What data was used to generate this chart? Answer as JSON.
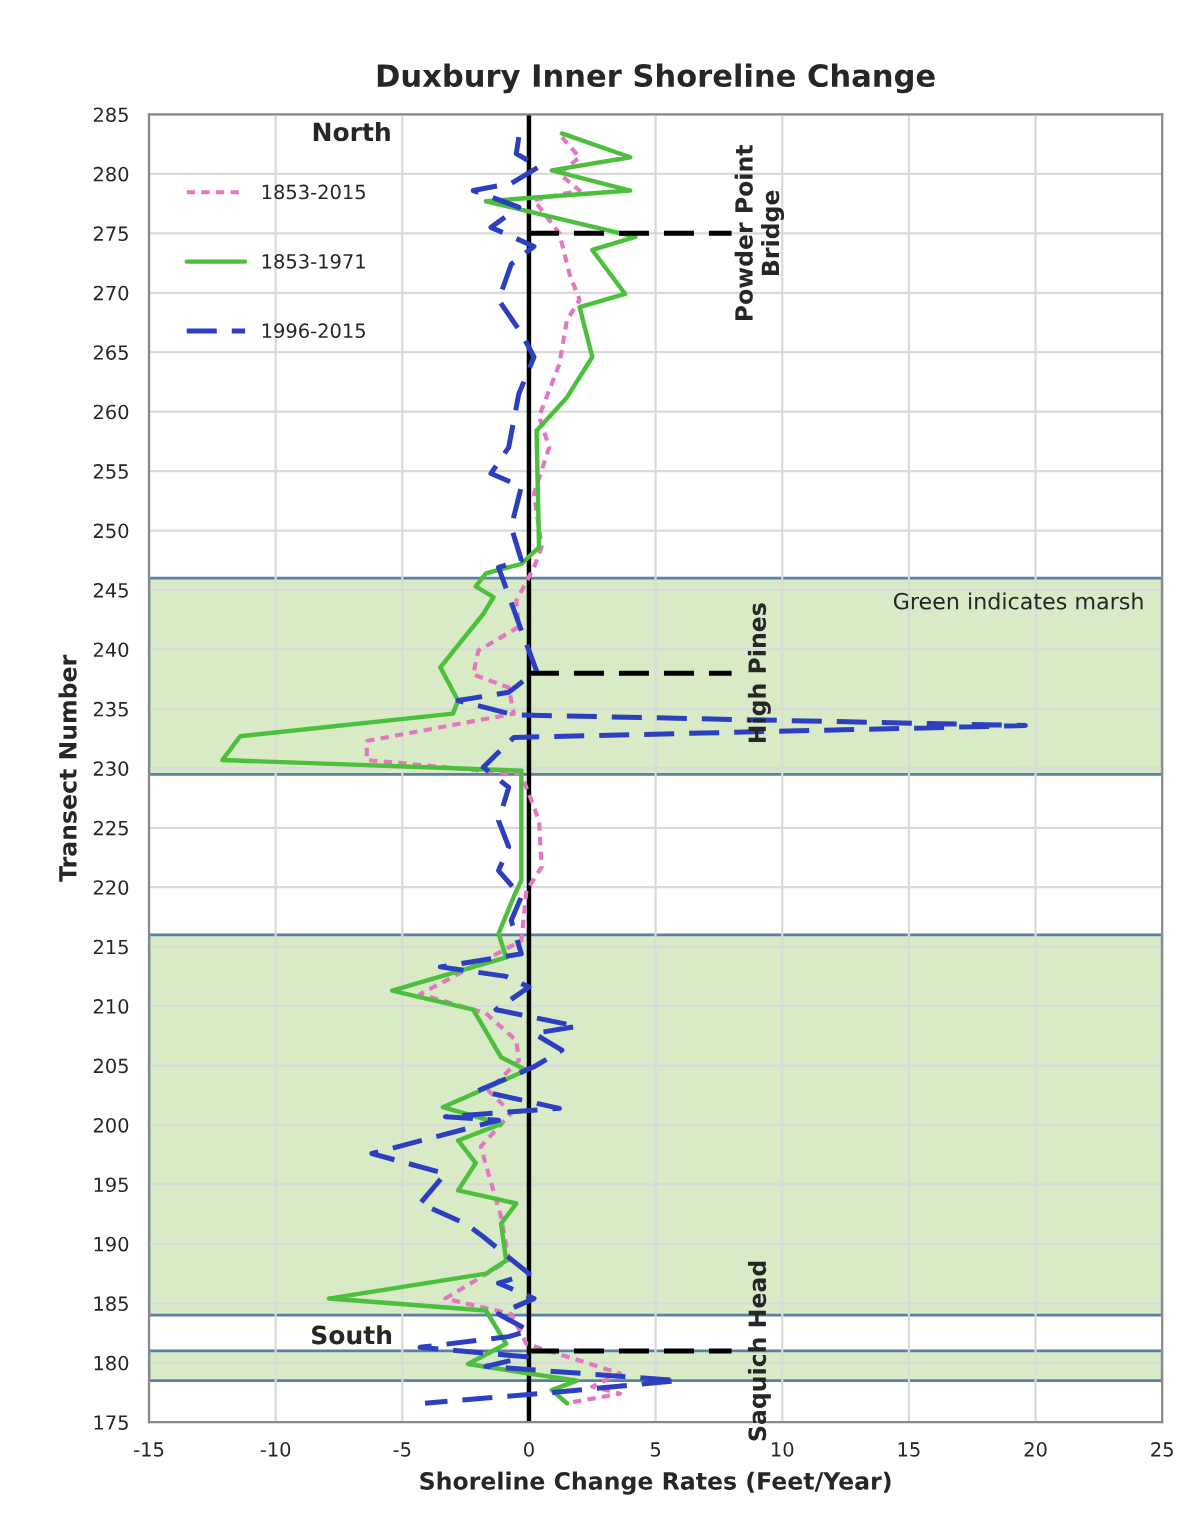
{
  "chart_data": {
    "type": "line",
    "title": "Duxbury Inner Shoreline Change",
    "xlabel": "Shoreline Change Rates (Feet/Year)",
    "ylabel": "Transect Number",
    "xlim": [
      -15,
      25
    ],
    "xticks": [
      -15,
      -10,
      -5,
      0,
      5,
      10,
      15,
      20,
      25
    ],
    "ylim": [
      175,
      285
    ],
    "yticks": [
      175,
      180,
      185,
      190,
      195,
      200,
      205,
      210,
      215,
      220,
      225,
      230,
      235,
      240,
      245,
      250,
      255,
      260,
      265,
      270,
      275,
      280,
      285
    ],
    "grid": true,
    "legend": "top left",
    "series": [
      {
        "name": "1853-2015",
        "color": "#e377c2",
        "line_style": "dotted",
        "x": [
          1.3,
          2.0,
          1.2,
          2.0,
          0.2,
          1.2,
          1.6,
          2.0,
          1.5,
          1.2,
          0.4,
          0.8,
          0.2,
          0.5,
          0.2,
          -0.5,
          -0.4,
          -2.0,
          -2.2,
          -0.8,
          -0.6,
          -6.4,
          -6.4,
          -0.3,
          0.4,
          0.5,
          -0.1,
          -0.3,
          -4.3,
          -1.7,
          -0.5,
          -0.4,
          -1.6,
          -0.7,
          -1.9,
          -1.6,
          -1.1,
          -0.8,
          -3.3,
          -0.7,
          -0.1,
          3.6,
          2.5,
          3.6,
          1.5
        ],
        "values": [
          283.1,
          281.4,
          280.0,
          278.6,
          277.8,
          275.0,
          271.6,
          269.4,
          267.7,
          264.0,
          259.6,
          257.0,
          253.1,
          248.6,
          246.9,
          244.1,
          241.9,
          239.9,
          237.9,
          236.8,
          234.6,
          232.3,
          230.7,
          229.5,
          225.6,
          221.7,
          219.7,
          215.5,
          211.0,
          209.4,
          207.1,
          205.4,
          202.9,
          201.0,
          198.2,
          195.9,
          192.3,
          188.6,
          185.4,
          184.1,
          181.6,
          179.1,
          178.0,
          177.4,
          176.6
        ]
      },
      {
        "name": "1853-1971",
        "color": "#4cc03c",
        "line_style": "solid",
        "x": [
          1.3,
          4.0,
          0.9,
          4.0,
          -1.7,
          4.2,
          2.5,
          3.8,
          2.0,
          2.5,
          1.5,
          0.3,
          0.4,
          -0.3,
          -1.7,
          -2.1,
          -1.4,
          -1.8,
          -3.5,
          -2.8,
          -3.0,
          -11.4,
          -12.1,
          -0.3,
          -0.3,
          -0.6,
          -1.2,
          -0.9,
          -5.4,
          -2.2,
          -1.1,
          -0.1,
          -3.4,
          -1.1,
          -2.8,
          -2.1,
          -2.8,
          -0.5,
          -1.1,
          -0.9,
          -1.7,
          -7.9,
          -1.7,
          -0.9,
          -2.4,
          0.0,
          1.9,
          0.9,
          1.5
        ],
        "values": [
          283.4,
          281.4,
          280.3,
          278.6,
          277.7,
          274.7,
          273.6,
          269.9,
          268.8,
          264.6,
          261.2,
          258.4,
          248.6,
          247.2,
          246.4,
          245.3,
          244.4,
          243.0,
          238.5,
          235.7,
          234.6,
          232.7,
          230.7,
          229.8,
          220.6,
          219.2,
          216.1,
          214.1,
          211.3,
          209.7,
          205.7,
          204.6,
          201.5,
          200.1,
          198.7,
          196.8,
          194.5,
          193.4,
          191.7,
          188.6,
          187.5,
          185.4,
          184.4,
          181.6,
          179.9,
          179.1,
          178.5,
          177.7,
          176.6
        ]
      },
      {
        "name": "1996-2015",
        "color": "#2b3fc0",
        "line_style": "dashed",
        "x": [
          -0.4,
          -0.5,
          0.4,
          -0.7,
          -2.2,
          -0.4,
          -1.5,
          0.2,
          -0.7,
          -1.2,
          -0.3,
          0.2,
          -0.4,
          -0.8,
          -1.5,
          -0.3,
          -0.7,
          -0.3,
          -1.2,
          -0.3,
          0.3,
          -0.8,
          -2.8,
          -0.6,
          19.6,
          -0.6,
          -1.8,
          -0.8,
          -1.2,
          -0.8,
          -1.2,
          -0.3,
          -0.7,
          -0.3,
          -3.5,
          -0.9,
          0.0,
          -1.3,
          1.9,
          0.2,
          1.3,
          0.2,
          -2.0,
          1.2,
          -3.3,
          -1.2,
          -6.2,
          -3.3,
          -4.3,
          -2.5,
          -1.8,
          0.0,
          -1.2,
          0.2,
          -1.2,
          0.0,
          -0.8,
          -4.3,
          -0.1,
          -1.7,
          5.9,
          0.9,
          -4.1
        ],
        "values": [
          283.1,
          281.7,
          280.6,
          279.2,
          278.6,
          277.2,
          275.5,
          273.9,
          272.4,
          269.4,
          266.6,
          264.6,
          261.5,
          257.0,
          254.8,
          253.7,
          250.3,
          247.5,
          246.9,
          241.6,
          238.2,
          236.4,
          235.7,
          234.5,
          233.6,
          232.6,
          230.1,
          228.4,
          225.6,
          223.4,
          221.4,
          219.2,
          217.2,
          214.4,
          213.3,
          212.5,
          211.6,
          209.7,
          208.3,
          207.7,
          206.3,
          204.9,
          202.9,
          201.4,
          200.7,
          200.4,
          197.6,
          195.9,
          193.4,
          191.7,
          190.6,
          187.5,
          186.7,
          185.4,
          184.1,
          182.7,
          182.2,
          181.3,
          180.5,
          179.7,
          178.5,
          177.5,
          176.6
        ]
      },
      {
        "color": "#000000",
        "line_style": "dashed",
        "x": [
          0,
          8
        ],
        "values": [
          275,
          275
        ]
      },
      {
        "color": "#000000",
        "line_style": "dashed",
        "x": [
          0,
          8
        ],
        "values": [
          238,
          238
        ]
      },
      {
        "color": "#000000",
        "line_style": "dashed",
        "x": [
          0,
          8
        ],
        "values": [
          181,
          181
        ]
      }
    ],
    "ref_lines": [
      {
        "axis": "x",
        "value": 0,
        "color": "#000000"
      }
    ],
    "bands": [
      {
        "axis": "y",
        "from": 229.5,
        "to": 246,
        "label": "Green indicates marsh",
        "color": "#d8ebc6"
      },
      {
        "axis": "y",
        "from": 184,
        "to": 216,
        "color": "#d8ebc6"
      },
      {
        "axis": "y",
        "from": 178.5,
        "to": 181,
        "color": "#d8ebc6"
      }
    ],
    "annotations": [
      "North",
      "South",
      "Powder Point\nBridge",
      "High Pines",
      "Saquich Head"
    ]
  }
}
